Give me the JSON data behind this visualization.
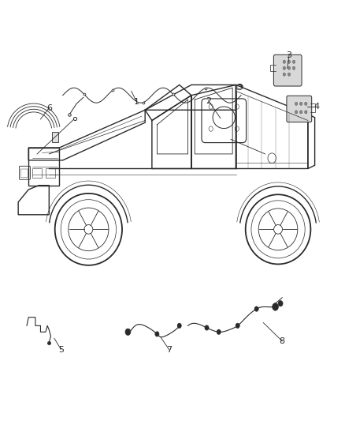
{
  "background_color": "#ffffff",
  "figsize": [
    4.38,
    5.33
  ],
  "dpi": 100,
  "line_color": "#2a2a2a",
  "line_color_light": "#666666",
  "font_size": 8,
  "callouts": [
    {
      "num": "1",
      "nx": 0.395,
      "ny": 0.735
    },
    {
      "num": "2",
      "nx": 0.605,
      "ny": 0.715
    },
    {
      "num": "3",
      "nx": 0.84,
      "ny": 0.86
    },
    {
      "num": "4",
      "nx": 0.92,
      "ny": 0.74
    },
    {
      "num": "5",
      "nx": 0.175,
      "ny": 0.175
    },
    {
      "num": "6",
      "nx": 0.14,
      "ny": 0.635
    },
    {
      "num": "7",
      "nx": 0.49,
      "ny": 0.175
    },
    {
      "num": "8",
      "nx": 0.82,
      "ny": 0.195
    }
  ]
}
